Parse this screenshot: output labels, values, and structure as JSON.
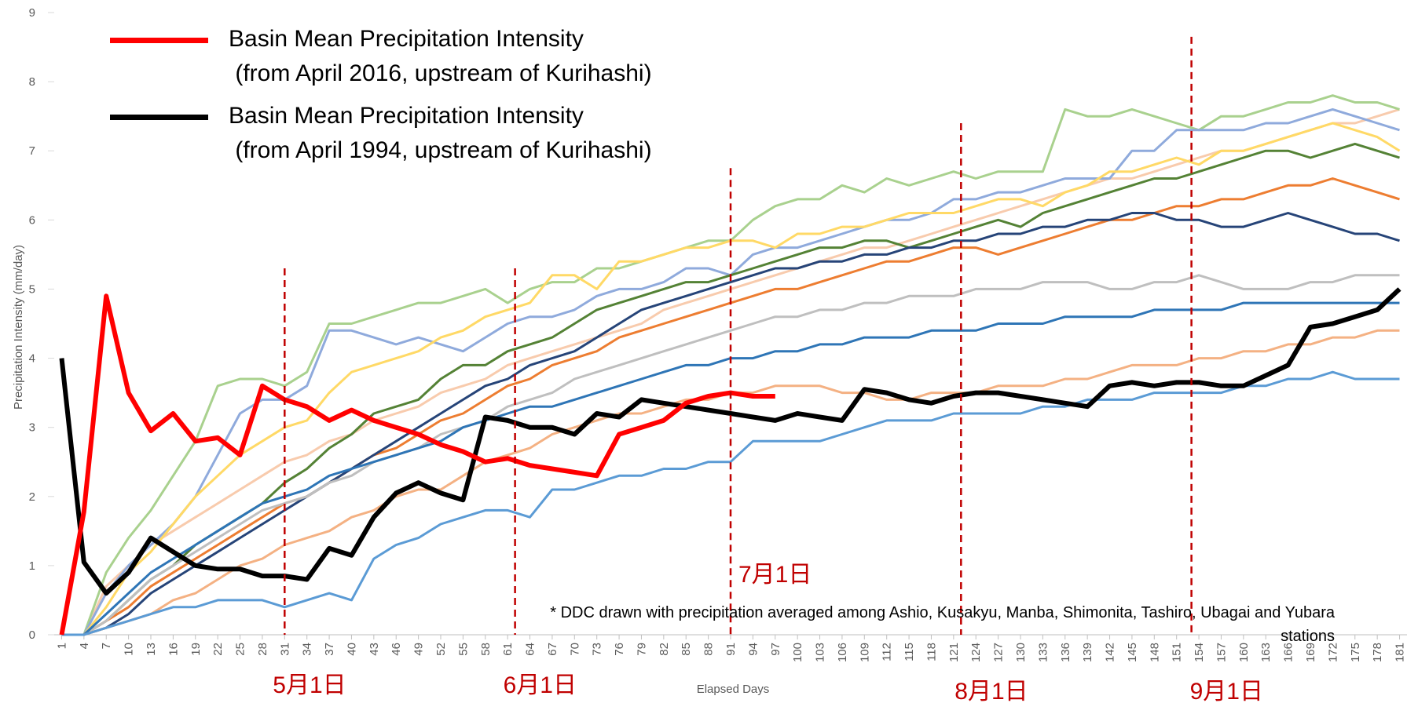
{
  "chart_data": {
    "type": "line",
    "y_label": "Precipitation Intensity (mm/day)",
    "x_label": "Elapsed Days",
    "note": "* DDC drawn with precipitation averaged among Ashio, Kusakyu, Manba, Shimonita, Tashiro, Ubagai and Yubara\nstations",
    "legend": "upper left",
    "grid": false,
    "xlim": [
      0,
      182
    ],
    "ylim": [
      0,
      9
    ],
    "yticks": [
      0,
      1,
      2,
      3,
      4,
      5,
      6,
      7,
      8,
      9
    ],
    "x": [
      1,
      4,
      7,
      10,
      13,
      16,
      19,
      22,
      25,
      28,
      31,
      34,
      37,
      40,
      43,
      46,
      49,
      52,
      55,
      58,
      61,
      64,
      67,
      70,
      73,
      76,
      79,
      82,
      85,
      88,
      91,
      94,
      97,
      100,
      103,
      106,
      109,
      112,
      115,
      118,
      121,
      124,
      127,
      130,
      133,
      136,
      139,
      142,
      145,
      148,
      151,
      154,
      157,
      160,
      163,
      166,
      169,
      172,
      175,
      178,
      181
    ],
    "annotations": [
      {
        "x": 31,
        "y": 5.3,
        "label": "5月1日"
      },
      {
        "x": 62,
        "y": 5.3,
        "label": "6月1日"
      },
      {
        "x": 91,
        "y": 6.75,
        "label": "7月1日"
      },
      {
        "x": 122,
        "y": 7.4,
        "label": "8月1日"
      },
      {
        "x": 153,
        "y": 8.65,
        "label": "9月1日"
      }
    ],
    "series": [
      {
        "color": "#f8cbad",
        "width": 3,
        "values": [
          0,
          0,
          0.7,
          1.0,
          1.3,
          1.5,
          1.7,
          1.9,
          2.1,
          2.3,
          2.5,
          2.6,
          2.8,
          2.9,
          3.1,
          3.2,
          3.3,
          3.5,
          3.6,
          3.7,
          3.9,
          4.0,
          4.1,
          4.2,
          4.3,
          4.4,
          4.5,
          4.7,
          4.8,
          4.9,
          5.0,
          5.1,
          5.2,
          5.3,
          5.4,
          5.5,
          5.6,
          5.6,
          5.7,
          5.8,
          5.9,
          6.0,
          6.1,
          6.2,
          6.3,
          6.4,
          6.5,
          6.6,
          6.6,
          6.7,
          6.8,
          6.9,
          7.0,
          7.0,
          7.1,
          7.2,
          7.3,
          7.4,
          7.4,
          7.5,
          7.6
        ]
      },
      {
        "color": "#a9d18e",
        "width": 3,
        "values": [
          0,
          0,
          0.9,
          1.4,
          1.8,
          2.3,
          2.8,
          3.6,
          3.7,
          3.7,
          3.6,
          3.8,
          4.5,
          4.5,
          4.6,
          4.7,
          4.8,
          4.8,
          4.9,
          5.0,
          4.8,
          5.0,
          5.1,
          5.1,
          5.3,
          5.3,
          5.4,
          5.5,
          5.6,
          5.7,
          5.7,
          6.0,
          6.2,
          6.3,
          6.3,
          6.5,
          6.4,
          6.6,
          6.5,
          6.6,
          6.7,
          6.6,
          6.7,
          6.7,
          6.7,
          7.6,
          7.5,
          7.5,
          7.6,
          7.5,
          7.4,
          7.3,
          7.5,
          7.5,
          7.6,
          7.7,
          7.7,
          7.8,
          7.7,
          7.7,
          7.6
        ]
      },
      {
        "color": "#8faadc",
        "width": 3,
        "values": [
          0,
          0,
          0.6,
          1.0,
          1.3,
          1.6,
          2.0,
          2.6,
          3.2,
          3.4,
          3.4,
          3.6,
          4.4,
          4.4,
          4.3,
          4.2,
          4.3,
          4.2,
          4.1,
          4.3,
          4.5,
          4.6,
          4.6,
          4.7,
          4.9,
          5.0,
          5.0,
          5.1,
          5.3,
          5.3,
          5.2,
          5.5,
          5.6,
          5.6,
          5.7,
          5.8,
          5.9,
          6.0,
          6.0,
          6.1,
          6.3,
          6.3,
          6.4,
          6.4,
          6.5,
          6.6,
          6.6,
          6.6,
          7.0,
          7.0,
          7.3,
          7.3,
          7.3,
          7.3,
          7.4,
          7.4,
          7.5,
          7.6,
          7.5,
          7.4,
          7.3
        ]
      },
      {
        "color": "#ffd966",
        "width": 3,
        "values": [
          0,
          0,
          0.4,
          0.9,
          1.2,
          1.6,
          2.0,
          2.3,
          2.6,
          2.8,
          3.0,
          3.1,
          3.5,
          3.8,
          3.9,
          4.0,
          4.1,
          4.3,
          4.4,
          4.6,
          4.7,
          4.8,
          5.2,
          5.2,
          5.0,
          5.4,
          5.4,
          5.5,
          5.6,
          5.6,
          5.7,
          5.7,
          5.6,
          5.8,
          5.8,
          5.9,
          5.9,
          6.0,
          6.1,
          6.1,
          6.1,
          6.2,
          6.3,
          6.3,
          6.2,
          6.4,
          6.5,
          6.7,
          6.7,
          6.8,
          6.9,
          6.8,
          7.0,
          7.0,
          7.1,
          7.2,
          7.3,
          7.4,
          7.3,
          7.2,
          7.0
        ]
      },
      {
        "color": "#548235",
        "width": 3,
        "values": [
          0,
          0,
          0.2,
          0.5,
          0.8,
          1.0,
          1.3,
          1.5,
          1.7,
          1.9,
          2.2,
          2.4,
          2.7,
          2.9,
          3.2,
          3.3,
          3.4,
          3.7,
          3.9,
          3.9,
          4.1,
          4.2,
          4.3,
          4.5,
          4.7,
          4.8,
          4.9,
          5.0,
          5.1,
          5.1,
          5.2,
          5.3,
          5.4,
          5.5,
          5.6,
          5.6,
          5.7,
          5.7,
          5.6,
          5.7,
          5.8,
          5.9,
          6.0,
          5.9,
          6.1,
          6.2,
          6.3,
          6.4,
          6.5,
          6.6,
          6.6,
          6.7,
          6.8,
          6.9,
          7.0,
          7.0,
          6.9,
          7.0,
          7.1,
          7.0,
          6.9
        ]
      },
      {
        "color": "#ed7d31",
        "width": 3,
        "values": [
          0,
          0,
          0.2,
          0.4,
          0.7,
          0.9,
          1.1,
          1.3,
          1.5,
          1.7,
          1.9,
          2.0,
          2.2,
          2.4,
          2.6,
          2.7,
          2.9,
          3.1,
          3.2,
          3.4,
          3.6,
          3.7,
          3.9,
          4.0,
          4.1,
          4.3,
          4.4,
          4.5,
          4.6,
          4.7,
          4.8,
          4.9,
          5.0,
          5.0,
          5.1,
          5.2,
          5.3,
          5.4,
          5.4,
          5.5,
          5.6,
          5.6,
          5.5,
          5.6,
          5.7,
          5.8,
          5.9,
          6.0,
          6.0,
          6.1,
          6.2,
          6.2,
          6.3,
          6.3,
          6.4,
          6.5,
          6.5,
          6.6,
          6.5,
          6.4,
          6.3
        ]
      },
      {
        "color": "#264478",
        "width": 3,
        "values": [
          0,
          0,
          0.1,
          0.3,
          0.6,
          0.8,
          1.0,
          1.2,
          1.4,
          1.6,
          1.8,
          2.0,
          2.2,
          2.4,
          2.6,
          2.8,
          3.0,
          3.2,
          3.4,
          3.6,
          3.7,
          3.9,
          4.0,
          4.1,
          4.3,
          4.5,
          4.7,
          4.8,
          4.9,
          5.0,
          5.1,
          5.2,
          5.3,
          5.3,
          5.4,
          5.4,
          5.5,
          5.5,
          5.6,
          5.6,
          5.7,
          5.7,
          5.8,
          5.8,
          5.9,
          5.9,
          6.0,
          6.0,
          6.1,
          6.1,
          6.0,
          6.0,
          5.9,
          5.9,
          6.0,
          6.1,
          6.0,
          5.9,
          5.8,
          5.8,
          5.7
        ]
      },
      {
        "color": "#bfbfbf",
        "width": 3,
        "values": [
          0,
          0,
          0.2,
          0.5,
          0.8,
          1.0,
          1.2,
          1.4,
          1.6,
          1.8,
          1.9,
          2.0,
          2.2,
          2.3,
          2.5,
          2.6,
          2.7,
          2.9,
          3.0,
          3.1,
          3.3,
          3.4,
          3.5,
          3.7,
          3.8,
          3.9,
          4.0,
          4.1,
          4.2,
          4.3,
          4.4,
          4.5,
          4.6,
          4.6,
          4.7,
          4.7,
          4.8,
          4.8,
          4.9,
          4.9,
          4.9,
          5.0,
          5.0,
          5.0,
          5.1,
          5.1,
          5.1,
          5.0,
          5.0,
          5.1,
          5.1,
          5.2,
          5.1,
          5.0,
          5.0,
          5.0,
          5.1,
          5.1,
          5.2,
          5.2,
          5.2
        ]
      },
      {
        "color": "#2e75b6",
        "width": 3,
        "values": [
          0,
          0,
          0.3,
          0.6,
          0.9,
          1.1,
          1.3,
          1.5,
          1.7,
          1.9,
          2.0,
          2.1,
          2.3,
          2.4,
          2.5,
          2.6,
          2.7,
          2.8,
          3.0,
          3.1,
          3.2,
          3.3,
          3.3,
          3.4,
          3.5,
          3.6,
          3.7,
          3.8,
          3.9,
          3.9,
          4.0,
          4.0,
          4.1,
          4.1,
          4.2,
          4.2,
          4.3,
          4.3,
          4.3,
          4.4,
          4.4,
          4.4,
          4.5,
          4.5,
          4.5,
          4.6,
          4.6,
          4.6,
          4.6,
          4.7,
          4.7,
          4.7,
          4.7,
          4.8,
          4.8,
          4.8,
          4.8,
          4.8,
          4.8,
          4.8,
          4.8
        ]
      },
      {
        "color": "#f4b183",
        "width": 3,
        "values": [
          0,
          0,
          0.1,
          0.2,
          0.3,
          0.5,
          0.6,
          0.8,
          1.0,
          1.1,
          1.3,
          1.4,
          1.5,
          1.7,
          1.8,
          2.0,
          2.1,
          2.1,
          2.3,
          2.5,
          2.6,
          2.7,
          2.9,
          3.0,
          3.1,
          3.2,
          3.2,
          3.3,
          3.4,
          3.4,
          3.5,
          3.5,
          3.6,
          3.6,
          3.6,
          3.5,
          3.5,
          3.4,
          3.4,
          3.5,
          3.5,
          3.5,
          3.6,
          3.6,
          3.6,
          3.7,
          3.7,
          3.8,
          3.9,
          3.9,
          3.9,
          4.0,
          4.0,
          4.1,
          4.1,
          4.2,
          4.2,
          4.3,
          4.3,
          4.4,
          4.4
        ]
      },
      {
        "color": "#5b9bd5",
        "width": 3,
        "values": [
          0,
          0,
          0.1,
          0.2,
          0.3,
          0.4,
          0.4,
          0.5,
          0.5,
          0.5,
          0.4,
          0.5,
          0.6,
          0.5,
          1.1,
          1.3,
          1.4,
          1.6,
          1.7,
          1.8,
          1.8,
          1.7,
          2.1,
          2.1,
          2.2,
          2.3,
          2.3,
          2.4,
          2.4,
          2.5,
          2.5,
          2.8,
          2.8,
          2.8,
          2.8,
          2.9,
          3.0,
          3.1,
          3.1,
          3.1,
          3.2,
          3.2,
          3.2,
          3.2,
          3.3,
          3.3,
          3.4,
          3.4,
          3.4,
          3.5,
          3.5,
          3.5,
          3.5,
          3.6,
          3.6,
          3.7,
          3.7,
          3.8,
          3.7,
          3.7,
          3.7
        ]
      },
      {
        "name": "Basin Mean Precipitation Intensity\n (from April 1994, upstream of Kurihashi)",
        "color": "#000000",
        "width": 6,
        "values": [
          4.0,
          1.05,
          0.6,
          0.9,
          1.4,
          1.2,
          1.0,
          0.95,
          0.95,
          0.85,
          0.85,
          0.8,
          1.25,
          1.15,
          1.7,
          2.05,
          2.2,
          2.05,
          1.95,
          3.15,
          3.1,
          3.0,
          3.0,
          2.9,
          3.2,
          3.15,
          3.4,
          3.35,
          3.3,
          3.25,
          3.2,
          3.15,
          3.1,
          3.2,
          3.15,
          3.1,
          3.55,
          3.5,
          3.4,
          3.35,
          3.45,
          3.5,
          3.5,
          3.45,
          3.4,
          3.35,
          3.3,
          3.6,
          3.65,
          3.6,
          3.65,
          3.65,
          3.6,
          3.6,
          3.75,
          3.9,
          4.45,
          4.5,
          4.6,
          4.7,
          5.0
        ]
      },
      {
        "name": "Basin Mean Precipitation Intensity\n (from April 2016, upstream of Kurihashi)",
        "color": "#ff0000",
        "width": 6,
        "values": [
          0,
          1.78,
          4.9,
          3.5,
          2.95,
          3.2,
          2.8,
          2.85,
          2.6,
          3.6,
          3.4,
          3.3,
          3.1,
          3.25,
          3.1,
          3.0,
          2.9,
          2.75,
          2.65,
          2.5,
          2.55,
          2.45,
          2.4,
          2.35,
          2.3,
          2.9,
          3.0,
          3.1,
          3.35,
          3.45,
          3.5,
          3.45,
          3.45,
          null,
          null,
          null,
          null,
          null,
          null,
          null,
          null,
          null,
          null,
          null,
          null,
          null,
          null,
          null,
          null,
          null,
          null,
          null,
          null,
          null,
          null,
          null,
          null,
          null,
          null,
          null,
          null
        ]
      }
    ]
  }
}
